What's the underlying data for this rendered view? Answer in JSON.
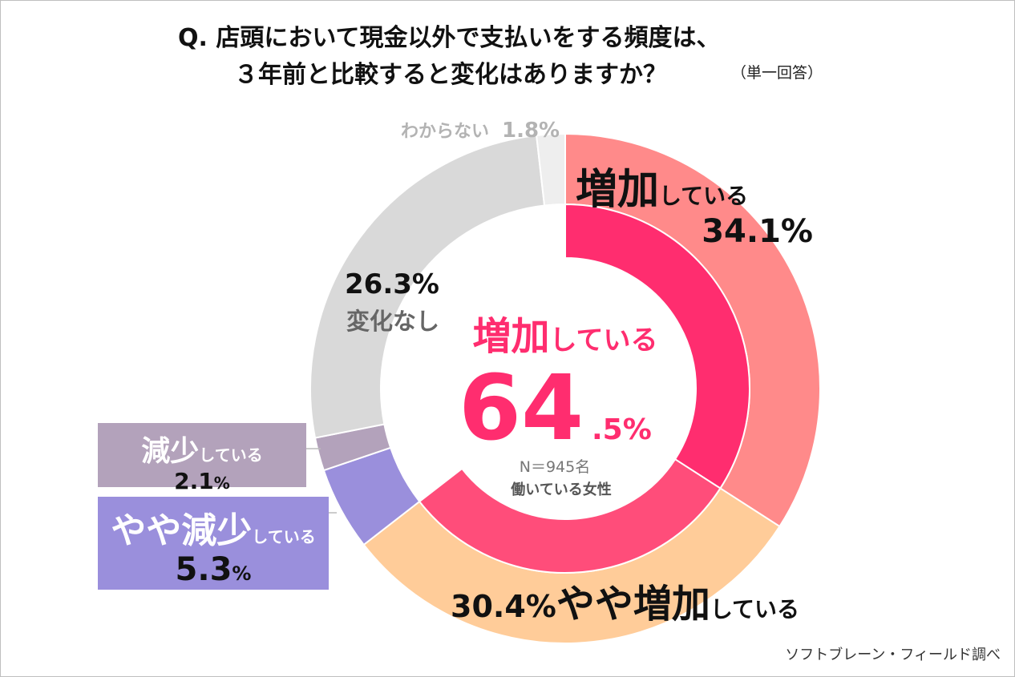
{
  "header": {
    "question_line1": "Q.  店頭において現金以外で支払いをする頻度は、",
    "question_line2": "３年前と比較すると変化はありますか？",
    "note": "（単一回答）"
  },
  "chart_data": {
    "type": "pie",
    "subtype": "double-donut",
    "outer_ring": {
      "categories": [
        "増加している",
        "やや増加している",
        "やや減少している",
        "減少している",
        "変化なし",
        "わからない"
      ],
      "values": [
        34.1,
        30.4,
        5.3,
        2.1,
        26.3,
        1.8
      ],
      "colors": [
        "#ff8a8a",
        "#ffcc99",
        "#9a8fdc",
        "#b3a2bb",
        "#d9d9d9",
        "#eeeeee"
      ]
    },
    "inner_ring": {
      "categories": [
        "増加している",
        "やや増加している"
      ],
      "values": [
        34.1,
        30.4
      ],
      "colors": [
        "#ff2d6f",
        "#ff4d7a"
      ],
      "total_label": "増加している",
      "total_value": "64",
      "total_value_decimal": ".5%"
    },
    "center": {
      "sample": "N＝945名",
      "population": "働いている女性"
    }
  },
  "labels": {
    "increase": {
      "big": "増加",
      "small": "している",
      "value": "34.1%"
    },
    "slight_increase": {
      "value": "30.4%",
      "big": "やや増加",
      "small": "している"
    },
    "slight_decrease": {
      "big": "やや減少",
      "small": "している",
      "value": "5.3",
      "unit": "%"
    },
    "decrease": {
      "big": "減少",
      "small": "している",
      "value": "2.1",
      "unit": "%"
    },
    "no_change": {
      "value": "26.3%",
      "label": "変化なし"
    },
    "unknown": {
      "label": "わからない",
      "value": "1.8%"
    }
  },
  "source": "ソフトブレーン・フィールド調べ"
}
